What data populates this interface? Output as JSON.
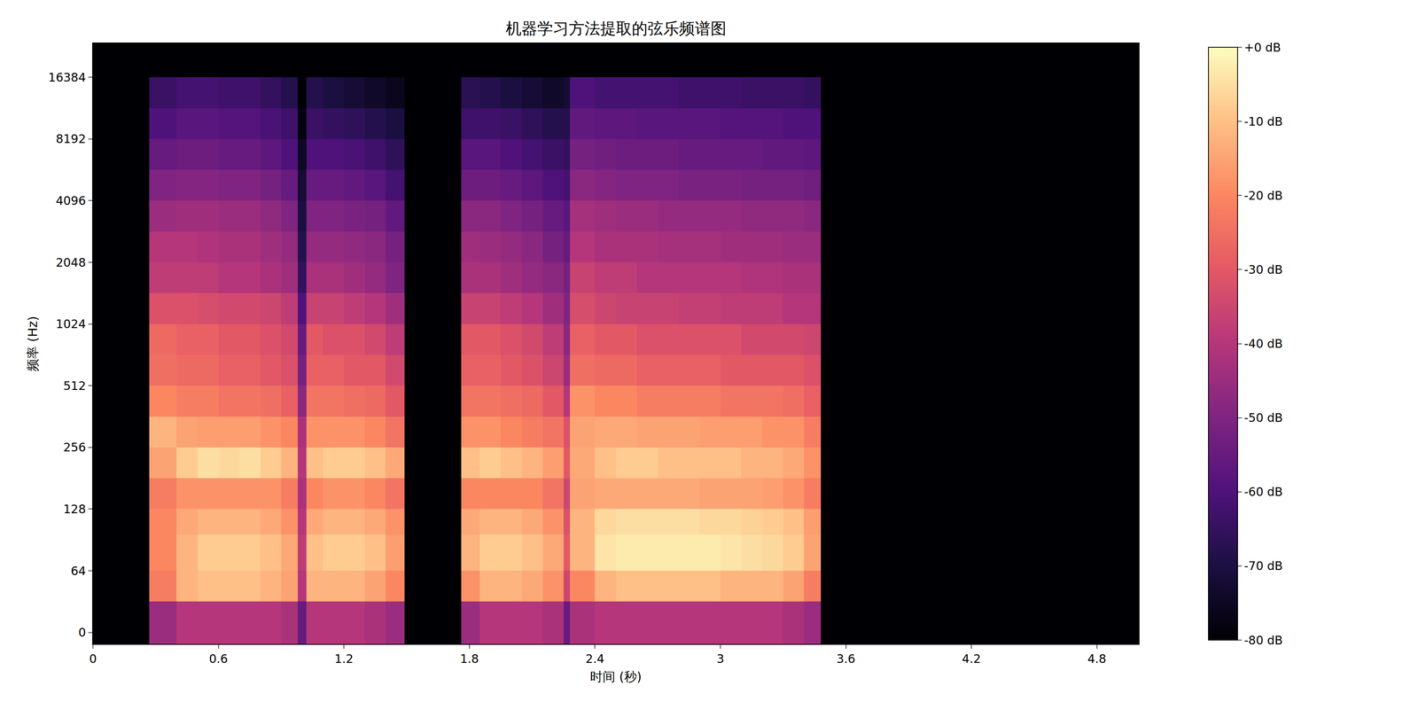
{
  "chart_data": {
    "type": "heatmap",
    "title": "机器学习方法提取的弦乐频谱图",
    "x_label": "时间 (秒)",
    "y_label": "频率 (Hz)",
    "log": "y",
    "grid": false,
    "x": [
      0,
      0.27,
      0.4,
      0.5,
      0.6,
      0.7,
      0.8,
      0.9,
      0.98,
      1.02,
      1.1,
      1.2,
      1.3,
      1.4,
      1.49,
      1.76,
      1.85,
      1.95,
      2.05,
      2.15,
      2.25,
      2.28,
      2.4,
      2.5,
      2.6,
      2.7,
      2.8,
      2.9,
      3.0,
      3.1,
      3.2,
      3.3,
      3.4,
      3.48,
      5.0
    ],
    "y": [
      -12,
      32,
      64,
      96,
      128,
      181,
      256,
      362,
      512,
      724,
      1024,
      1448,
      2048,
      2896,
      4096,
      5793,
      8192,
      11585,
      16384,
      24000
    ],
    "z": [
      [
        -80,
        -45,
        -40,
        -40,
        -40,
        -40,
        -40,
        -42,
        -55,
        -40,
        -40,
        -40,
        -42,
        -45,
        -80,
        -45,
        -40,
        -40,
        -40,
        -42,
        -55,
        -42,
        -40,
        -40,
        -40,
        -40,
        -40,
        -40,
        -40,
        -40,
        -40,
        -42,
        -45,
        -80
      ],
      [
        -80,
        -22,
        -12,
        -10,
        -10,
        -10,
        -12,
        -15,
        -40,
        -12,
        -12,
        -12,
        -15,
        -20,
        -80,
        -18,
        -12,
        -12,
        -14,
        -18,
        -35,
        -20,
        -12,
        -10,
        -10,
        -10,
        -10,
        -10,
        -12,
        -12,
        -12,
        -15,
        -22,
        -80
      ],
      [
        -80,
        -20,
        -12,
        -8,
        -8,
        -8,
        -10,
        -14,
        -38,
        -10,
        -8,
        -8,
        -10,
        -16,
        -80,
        -12,
        -8,
        -8,
        -10,
        -14,
        -30,
        -12,
        -4,
        -3,
        -3,
        -3,
        -3,
        -3,
        -4,
        -5,
        -6,
        -8,
        -15,
        -80
      ],
      [
        -80,
        -20,
        -14,
        -12,
        -12,
        -12,
        -14,
        -18,
        -40,
        -14,
        -12,
        -12,
        -14,
        -18,
        -80,
        -14,
        -12,
        -12,
        -14,
        -18,
        -32,
        -12,
        -6,
        -5,
        -5,
        -5,
        -5,
        -6,
        -6,
        -7,
        -8,
        -10,
        -16,
        -80
      ],
      [
        -80,
        -22,
        -18,
        -18,
        -18,
        -18,
        -18,
        -22,
        -42,
        -20,
        -18,
        -18,
        -20,
        -24,
        -80,
        -20,
        -20,
        -20,
        -20,
        -24,
        -35,
        -15,
        -14,
        -14,
        -14,
        -14,
        -14,
        -15,
        -15,
        -15,
        -16,
        -18,
        -22,
        -80
      ],
      [
        -80,
        -15,
        -8,
        -5,
        -6,
        -5,
        -8,
        -12,
        -40,
        -10,
        -8,
        -8,
        -10,
        -14,
        -80,
        -10,
        -8,
        -10,
        -12,
        -16,
        -30,
        -14,
        -10,
        -8,
        -8,
        -10,
        -10,
        -10,
        -10,
        -12,
        -12,
        -14,
        -18,
        -80
      ],
      [
        -80,
        -12,
        -15,
        -16,
        -16,
        -16,
        -18,
        -20,
        -42,
        -18,
        -18,
        -18,
        -20,
        -24,
        -80,
        -18,
        -18,
        -20,
        -22,
        -24,
        -32,
        -15,
        -14,
        -14,
        -15,
        -15,
        -15,
        -16,
        -16,
        -16,
        -18,
        -18,
        -22,
        -80
      ],
      [
        -80,
        -20,
        -22,
        -22,
        -24,
        -24,
        -25,
        -28,
        -48,
        -24,
        -24,
        -25,
        -26,
        -30,
        -80,
        -24,
        -24,
        -25,
        -26,
        -30,
        -40,
        -18,
        -20,
        -20,
        -22,
        -22,
        -22,
        -22,
        -24,
        -24,
        -24,
        -25,
        -28,
        -80
      ],
      [
        -80,
        -25,
        -26,
        -26,
        -28,
        -28,
        -30,
        -32,
        -52,
        -28,
        -28,
        -30,
        -30,
        -34,
        -80,
        -28,
        -28,
        -30,
        -32,
        -35,
        -45,
        -25,
        -26,
        -26,
        -28,
        -28,
        -28,
        -28,
        -30,
        -30,
        -30,
        -30,
        -32,
        -80
      ],
      [
        -80,
        -26,
        -28,
        -28,
        -30,
        -30,
        -32,
        -34,
        -55,
        -30,
        -32,
        -32,
        -34,
        -38,
        -80,
        -30,
        -30,
        -32,
        -34,
        -38,
        -48,
        -28,
        -30,
        -30,
        -32,
        -32,
        -32,
        -32,
        -32,
        -34,
        -34,
        -34,
        -35,
        -80
      ],
      [
        -80,
        -32,
        -32,
        -33,
        -34,
        -34,
        -35,
        -38,
        -60,
        -36,
        -36,
        -38,
        -40,
        -44,
        -80,
        -36,
        -36,
        -38,
        -40,
        -44,
        -50,
        -33,
        -35,
        -36,
        -36,
        -36,
        -37,
        -37,
        -38,
        -38,
        -38,
        -40,
        -40,
        -80
      ],
      [
        -80,
        -38,
        -38,
        -38,
        -40,
        -40,
        -42,
        -44,
        -65,
        -42,
        -42,
        -44,
        -46,
        -50,
        -80,
        -42,
        -42,
        -44,
        -46,
        -48,
        -52,
        -36,
        -38,
        -38,
        -40,
        -40,
        -40,
        -40,
        -40,
        -41,
        -41,
        -42,
        -42,
        -80
      ],
      [
        -80,
        -40,
        -40,
        -41,
        -42,
        -42,
        -44,
        -46,
        -68,
        -46,
        -46,
        -47,
        -48,
        -52,
        -80,
        -44,
        -45,
        -46,
        -48,
        -52,
        -55,
        -40,
        -42,
        -42,
        -42,
        -43,
        -43,
        -43,
        -44,
        -44,
        -44,
        -45,
        -45,
        -80
      ],
      [
        -80,
        -45,
        -44,
        -44,
        -45,
        -45,
        -47,
        -50,
        -70,
        -50,
        -50,
        -51,
        -52,
        -56,
        -80,
        -48,
        -48,
        -50,
        -52,
        -55,
        -58,
        -43,
        -44,
        -45,
        -45,
        -46,
        -46,
        -46,
        -46,
        -47,
        -47,
        -47,
        -48,
        -80
      ],
      [
        -80,
        -50,
        -49,
        -49,
        -50,
        -50,
        -52,
        -55,
        -72,
        -55,
        -55,
        -56,
        -58,
        -62,
        -80,
        -54,
        -54,
        -55,
        -57,
        -60,
        -62,
        -48,
        -49,
        -50,
        -50,
        -50,
        -51,
        -51,
        -51,
        -52,
        -52,
        -52,
        -53,
        -80
      ],
      [
        -80,
        -55,
        -54,
        -54,
        -55,
        -55,
        -57,
        -60,
        -75,
        -60,
        -60,
        -61,
        -63,
        -66,
        -80,
        -58,
        -58,
        -60,
        -62,
        -64,
        -65,
        -52,
        -53,
        -54,
        -54,
        -54,
        -55,
        -55,
        -55,
        -55,
        -56,
        -56,
        -57,
        -80
      ],
      [
        -80,
        -60,
        -58,
        -58,
        -59,
        -59,
        -61,
        -63,
        -78,
        -64,
        -65,
        -66,
        -68,
        -70,
        -80,
        -63,
        -63,
        -64,
        -66,
        -68,
        -68,
        -56,
        -57,
        -57,
        -58,
        -58,
        -58,
        -58,
        -59,
        -59,
        -59,
        -60,
        -60,
        -80
      ],
      [
        -80,
        -64,
        -62,
        -62,
        -63,
        -63,
        -65,
        -68,
        -80,
        -68,
        -70,
        -72,
        -74,
        -76,
        -80,
        -67,
        -68,
        -70,
        -72,
        -74,
        -72,
        -60,
        -62,
        -62,
        -62,
        -62,
        -63,
        -63,
        -63,
        -64,
        -64,
        -64,
        -65,
        -80
      ],
      [
        -80,
        -80,
        -80,
        -80,
        -80,
        -80,
        -80,
        -80,
        -80,
        -80,
        -80,
        -80,
        -80,
        -80,
        -80,
        -80,
        -80,
        -80,
        -80,
        -80,
        -80,
        -80,
        -80,
        -80,
        -80,
        -80,
        -80,
        -80,
        -80,
        -80,
        -80,
        -80,
        -80,
        -80
      ]
    ],
    "xlim": [
      0,
      5.0
    ],
    "xticks": [
      0,
      0.6,
      1.2,
      1.8,
      2.4,
      3,
      3.6,
      4.2,
      4.8
    ],
    "ylim": [
      -12,
      24000
    ],
    "yticks": [
      0,
      64,
      128,
      256,
      512,
      1024,
      2048,
      4096,
      8192,
      16384
    ],
    "colorbar": {
      "range": [
        -80,
        0
      ],
      "ticks": [
        {
          "value": 0,
          "label": "+0 dB"
        },
        {
          "value": -10,
          "label": "-10 dB"
        },
        {
          "value": -20,
          "label": "-20 dB"
        },
        {
          "value": -30,
          "label": "-30 dB"
        },
        {
          "value": -40,
          "label": "-40 dB"
        },
        {
          "value": -50,
          "label": "-50 dB"
        },
        {
          "value": -60,
          "label": "-60 dB"
        },
        {
          "value": -70,
          "label": "-70 dB"
        },
        {
          "value": -80,
          "label": "-80 dB"
        }
      ]
    }
  }
}
